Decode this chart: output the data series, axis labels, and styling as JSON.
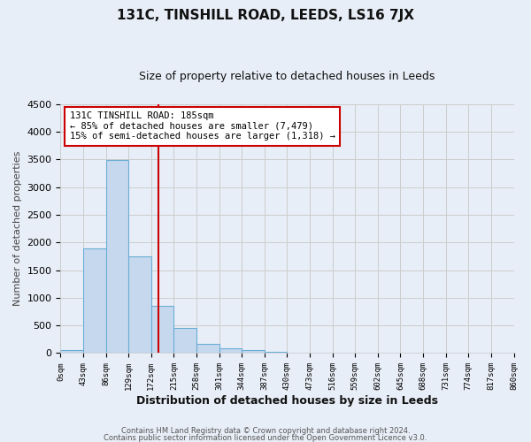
{
  "title": "131C, TINSHILL ROAD, LEEDS, LS16 7JX",
  "subtitle": "Size of property relative to detached houses in Leeds",
  "xlabel": "Distribution of detached houses by size in Leeds",
  "ylabel": "Number of detached properties",
  "bar_color": "#c5d8ee",
  "bar_edge_color": "#6aaed6",
  "bin_edges": [
    0,
    43,
    86,
    129,
    172,
    215,
    258,
    301,
    344,
    387,
    430,
    473,
    516,
    559,
    602,
    645,
    688,
    731,
    774,
    817,
    860
  ],
  "bar_heights": [
    50,
    1900,
    3490,
    1750,
    850,
    450,
    175,
    90,
    50,
    20,
    0,
    0,
    0,
    0,
    0,
    0,
    0,
    0,
    0,
    0
  ],
  "vline_x": 185,
  "vline_color": "#cc0000",
  "annotation_line1": "131C TINSHILL ROAD: 185sqm",
  "annotation_line2": "← 85% of detached houses are smaller (7,479)",
  "annotation_line3": "15% of semi-detached houses are larger (1,318) →",
  "annotation_box_color": "#ffffff",
  "annotation_box_edge": "#cc0000",
  "ylim": [
    0,
    4500
  ],
  "yticks": [
    0,
    500,
    1000,
    1500,
    2000,
    2500,
    3000,
    3500,
    4000,
    4500
  ],
  "xtick_labels": [
    "0sqm",
    "43sqm",
    "86sqm",
    "129sqm",
    "172sqm",
    "215sqm",
    "258sqm",
    "301sqm",
    "344sqm",
    "387sqm",
    "430sqm",
    "473sqm",
    "516sqm",
    "559sqm",
    "602sqm",
    "645sqm",
    "688sqm",
    "731sqm",
    "774sqm",
    "817sqm",
    "860sqm"
  ],
  "footer_line1": "Contains HM Land Registry data © Crown copyright and database right 2024.",
  "footer_line2": "Contains public sector information licensed under the Open Government Licence v3.0.",
  "grid_color": "#cccccc",
  "background_color": "#e8eef7",
  "title_fontsize": 11,
  "subtitle_fontsize": 9
}
